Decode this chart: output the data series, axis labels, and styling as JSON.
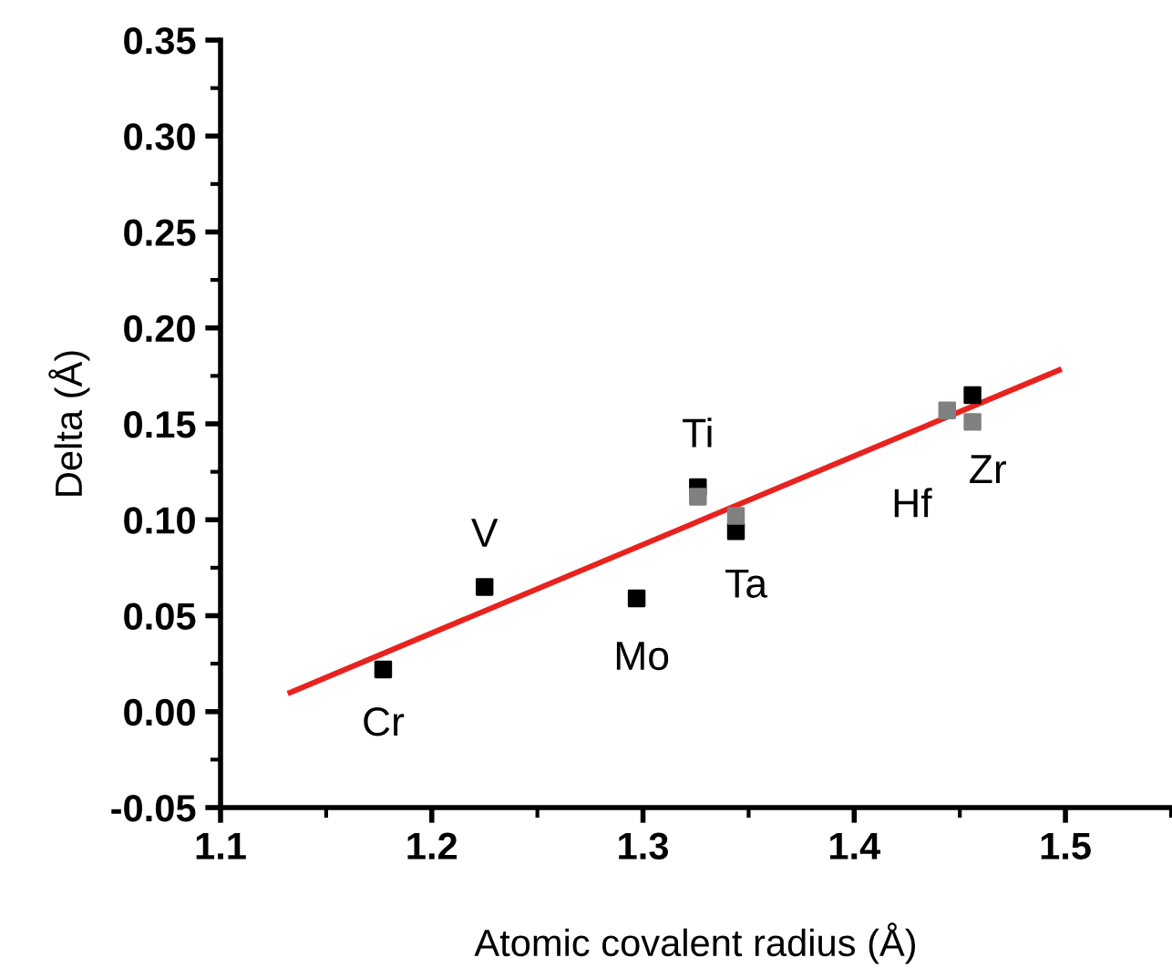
{
  "chart_data": {
    "type": "scatter",
    "xlabel": "Atomic covalent radius (Å)",
    "ylabel": "Delta (Å)",
    "xlim": [
      1.1,
      1.55
    ],
    "xticks": [
      1.1,
      1.2,
      1.3,
      1.4,
      1.5
    ],
    "ylim": [
      -0.05,
      0.35
    ],
    "yticks": [
      {
        "value": -0.05,
        "label": "-0.05"
      },
      {
        "value": 0.0,
        "label": "0.00"
      },
      {
        "value": 0.05,
        "label": "0.05"
      },
      {
        "value": 0.1,
        "label": "0.10"
      },
      {
        "value": 0.15,
        "label": "0.15"
      },
      {
        "value": 0.2,
        "label": "0.20"
      },
      {
        "value": 0.25,
        "label": "0.25"
      },
      {
        "value": 0.3,
        "label": "0.30"
      },
      {
        "value": 0.35,
        "label": "0.35"
      }
    ],
    "marker": "square",
    "grid": false,
    "series": [
      {
        "color": "#000000",
        "x": [
          1.177,
          1.225,
          1.297,
          1.326,
          1.344,
          1.456
        ],
        "values": [
          0.022,
          0.065,
          0.059,
          0.117,
          0.094,
          0.165
        ]
      },
      {
        "color": "#808080",
        "x": [
          1.326,
          1.344,
          1.444,
          1.456
        ],
        "values": [
          0.112,
          0.102,
          0.157,
          0.151
        ]
      },
      {
        "type": "line",
        "marker": "none",
        "color": "#e8221e",
        "x": [
          1.133,
          1.497
        ],
        "values": [
          0.01,
          0.178
        ]
      }
    ],
    "annotations": [
      {
        "text": "Cr",
        "x": 1.177,
        "y": 0.022
      },
      {
        "text": "V",
        "x": 1.225,
        "y": 0.065
      },
      {
        "text": "Mo",
        "x": 1.297,
        "y": 0.059
      },
      {
        "text": "Ti",
        "x": 1.326,
        "y": 0.117
      },
      {
        "text": "Ta",
        "x": 1.344,
        "y": 0.094
      },
      {
        "text": "Hf",
        "x": 1.444,
        "y": 0.157
      },
      {
        "text": "Zr",
        "x": 1.456,
        "y": 0.151
      }
    ]
  }
}
